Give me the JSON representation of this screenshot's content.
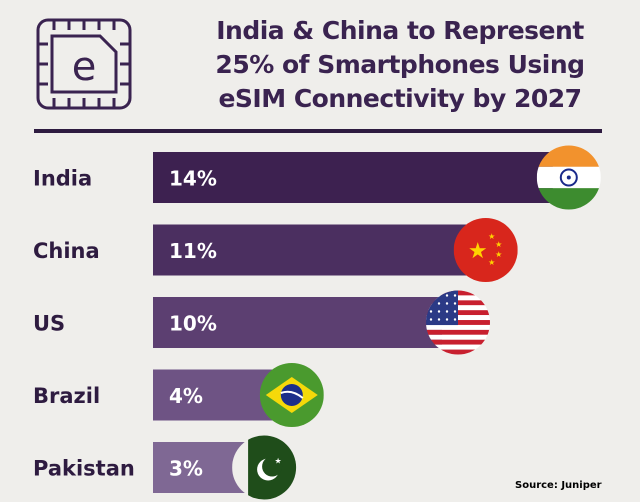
{
  "title": "India & China to Represent 25% of Smartphones Using eSIM Connectivity by 2027",
  "logo_icon": "esim-chip-icon",
  "logo_letter": "e",
  "source": "Source: Juniper",
  "chart_data": {
    "type": "bar",
    "orientation": "horizontal",
    "title": "India & China to Represent 25% of Smartphones Using eSIM Connectivity by 2027",
    "categories": [
      "India",
      "China",
      "US",
      "Brazil",
      "Pakistan"
    ],
    "values": [
      14,
      11,
      10,
      4,
      3
    ],
    "value_labels": [
      "14%",
      "11%",
      "10%",
      "4%",
      "3%"
    ],
    "unit": "%",
    "flags": [
      "india-flag-icon",
      "china-flag-icon",
      "us-flag-icon",
      "brazil-flag-icon",
      "pakistan-flag-icon"
    ],
    "bar_colors": [
      "#3d2150",
      "#4b2f60",
      "#5c3f71",
      "#6e5384",
      "#7f6894"
    ],
    "grid": false,
    "legend": "none"
  }
}
